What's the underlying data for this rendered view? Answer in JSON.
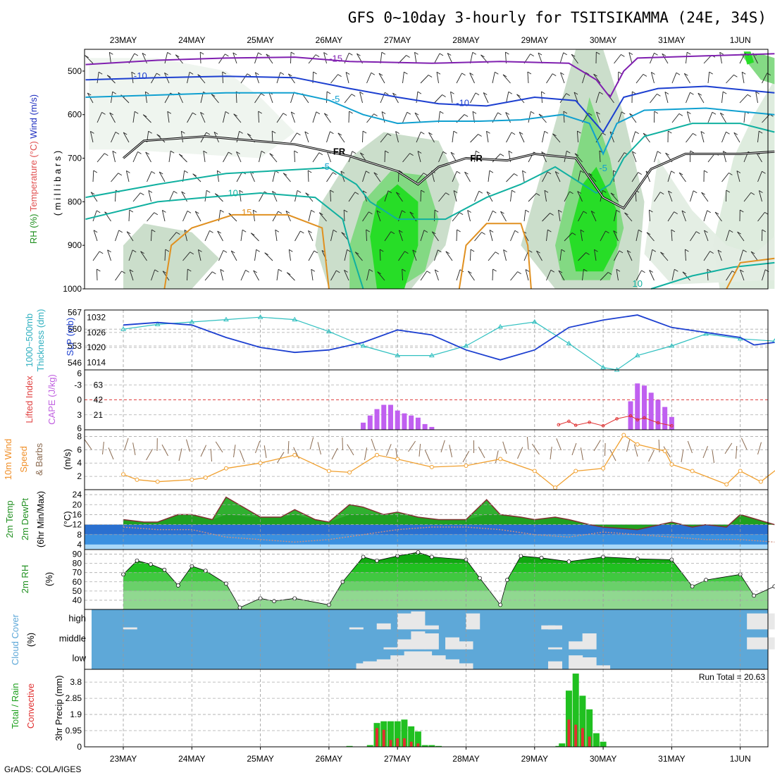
{
  "title": "GFS 0~10day 3-hourly for TSITSIKAMMA (24E, 34S)",
  "footer": "GrADS: COLA/IGES",
  "run_total": "Run Total = 20.63",
  "dates": [
    "23MAY",
    "24MAY",
    "25MAY",
    "26MAY",
    "27MAY",
    "28MAY",
    "29MAY",
    "30MAY",
    "31MAY",
    "1JUN"
  ],
  "colors": {
    "purple": "#8020b0",
    "blue": "#1c3fd0",
    "lightblue": "#10a0d0",
    "teal": "#10b0a0",
    "orange": "#e09020",
    "green": "#00e000",
    "darkgreen": "#209020",
    "cloud_bg": "#5ea8d8",
    "cloud_fill": "#e8e8e8"
  },
  "chart_data": [
    {
      "type": "area",
      "panel": "upper-air",
      "ylabel_parts": [
        "RH (%)",
        "Temperature (°C)",
        "Wind (m/s)"
      ],
      "ylabel_mb": "( m i l l i b a r s )",
      "yticks": [
        "500",
        "600",
        "700",
        "800",
        "900",
        "1000"
      ],
      "ylim": [
        1000,
        450
      ],
      "contour_labels": [
        {
          "text": "-15",
          "x": 3.1,
          "p": 478
        },
        {
          "text": "-10",
          "x": 0.25,
          "p": 518
        },
        {
          "text": "-5",
          "x": 3.1,
          "p": 571
        },
        {
          "text": "-10",
          "x": 4.95,
          "p": 580
        },
        {
          "text": "FR",
          "x": 3.15,
          "p": 692
        },
        {
          "text": "FR",
          "x": 5.15,
          "p": 707
        },
        {
          "text": "-5",
          "x": 2.95,
          "p": 727
        },
        {
          "text": "-5",
          "x": 7.0,
          "p": 730
        },
        {
          "text": "10",
          "x": 1.6,
          "p": 787
        },
        {
          "text": "15",
          "x": 1.8,
          "p": 832
        },
        {
          "text": "10",
          "x": 7.5,
          "p": 995
        }
      ],
      "freezing_level_mb": [
        {
          "x": 0,
          "p": 700
        },
        {
          "x": 0.3,
          "p": 660
        },
        {
          "x": 1.2,
          "p": 650
        },
        {
          "x": 2.5,
          "p": 668
        },
        {
          "x": 3.3,
          "p": 695
        },
        {
          "x": 4.0,
          "p": 730
        },
        {
          "x": 4.3,
          "p": 760
        },
        {
          "x": 4.6,
          "p": 720
        },
        {
          "x": 5.0,
          "p": 700
        },
        {
          "x": 5.6,
          "p": 705
        },
        {
          "x": 6.0,
          "p": 690
        },
        {
          "x": 6.6,
          "p": 700
        },
        {
          "x": 7.0,
          "p": 790
        },
        {
          "x": 7.3,
          "p": 815
        },
        {
          "x": 7.7,
          "p": 725
        },
        {
          "x": 8.2,
          "p": 690
        },
        {
          "x": 9.0,
          "p": 690
        },
        {
          "x": 9.5,
          "p": 685
        }
      ]
    },
    {
      "type": "line",
      "panel": "thickness-slp",
      "ylabel_left": "1000~500mb Thickness (dm)",
      "ylabel_right": "SLP (mb)",
      "yticks_left": [
        "567",
        "560",
        "553",
        "546"
      ],
      "yticks_right": [
        "1032",
        "1026",
        "1020",
        "1014"
      ],
      "series": [
        {
          "name": "Thickness",
          "x": [
            0,
            0.5,
            1,
            1.5,
            2,
            2.5,
            3,
            3.5,
            4,
            4.5,
            5,
            5.5,
            6,
            6.5,
            7,
            7.2,
            7.5,
            8,
            8.5,
            9,
            9.5
          ],
          "values": [
            560,
            562,
            563,
            564,
            565,
            564,
            559,
            553,
            549,
            549,
            553,
            561,
            563,
            554,
            544,
            543,
            549,
            553,
            558,
            556,
            555
          ]
        },
        {
          "name": "SLP",
          "x": [
            0,
            0.5,
            1,
            1.5,
            2,
            2.5,
            3,
            3.5,
            4,
            4.5,
            5,
            5.5,
            6,
            6.5,
            7,
            7.5,
            8,
            8.5,
            9,
            9.2,
            9.5
          ],
          "values": [
            1029,
            1030,
            1029,
            1024,
            1020,
            1018,
            1019,
            1022,
            1027,
            1025,
            1019,
            1015,
            1019,
            1028,
            1031,
            1033,
            1028,
            1026,
            1024,
            1021,
            1022
          ]
        }
      ]
    },
    {
      "type": "bar",
      "panel": "cape-li",
      "ylabel_left": "Lifted Index",
      "ylabel_right": "CAPE (J/kg)",
      "yticks_left": [
        "-3",
        "0",
        "3"
      ],
      "yticks_right": [
        "63",
        "42",
        "21"
      ],
      "yticks_left_edges": [
        "6",
        "6"
      ],
      "cape": {
        "x": [
          3.5,
          3.6,
          3.7,
          3.8,
          3.9,
          4.0,
          4.1,
          4.2,
          4.3,
          4.4,
          4.5,
          7.4,
          7.5,
          7.6,
          7.7,
          7.8,
          7.9,
          8.0
        ],
        "values": [
          10,
          20,
          29,
          35,
          35,
          27,
          23,
          20,
          17,
          8,
          4,
          40,
          65,
          62,
          52,
          42,
          32,
          18
        ]
      },
      "li": {
        "x": [
          6.35,
          6.5,
          6.6,
          6.8,
          7.0,
          7.2,
          7.4,
          7.5,
          7.6,
          7.8,
          8.0
        ],
        "values": [
          5.0,
          4.3,
          5.1,
          4.5,
          5.2,
          3.8,
          3.2,
          4.0,
          3.6,
          4.6,
          5.2
        ]
      }
    },
    {
      "type": "line",
      "panel": "wind10m",
      "ylabel_parts": [
        "10m Wind",
        "Speed",
        "& Barbs"
      ],
      "yunit": "(m/s)",
      "yticks": [
        "8",
        "6",
        "4",
        "2"
      ],
      "series": [
        {
          "name": "10m Wind Speed",
          "x": [
            0,
            0.2,
            0.5,
            1,
            1.2,
            1.5,
            2,
            2.5,
            3,
            3.3,
            3.7,
            4,
            4.5,
            5,
            5.5,
            6,
            6.3,
            6.6,
            7,
            7.3,
            7.5,
            7.9,
            8,
            8.3,
            8.8,
            9,
            9.3,
            9.6
          ],
          "values": [
            2.3,
            1.5,
            1.2,
            1.5,
            1.8,
            3.2,
            4.0,
            5.2,
            2.8,
            2.6,
            5.2,
            4.6,
            3.4,
            3.6,
            4.6,
            2.8,
            0.3,
            2.8,
            3.2,
            8.2,
            6.8,
            5.8,
            3.8,
            2.8,
            0.8,
            2.8,
            1.2,
            3.6
          ]
        }
      ]
    },
    {
      "type": "area",
      "panel": "temp-dewpt",
      "ylabel_parts": [
        "2m Temp",
        "2m DewPt",
        "(6hr Min/Max)"
      ],
      "yunit": "(°C)",
      "yticks": [
        "24",
        "20",
        "16",
        "12",
        "8",
        "4"
      ],
      "series": [
        {
          "name": "2m Temp",
          "x": [
            0,
            0.3,
            0.5,
            0.8,
            1,
            1.3,
            1.5,
            2,
            2.3,
            2.5,
            2.8,
            3,
            3.3,
            3.5,
            3.8,
            4,
            4.3,
            4.6,
            5,
            5.3,
            5.5,
            5.8,
            6,
            6.3,
            6.5,
            6.8,
            7,
            7.5,
            8,
            8.3,
            8.5,
            8.8,
            9,
            9.5
          ],
          "values": [
            14,
            13,
            13,
            16,
            16,
            14,
            23,
            15,
            15,
            18,
            14,
            13,
            20,
            19,
            16,
            17,
            15,
            14,
            14,
            22,
            16,
            15,
            14,
            15,
            14,
            12,
            11,
            10,
            13,
            11,
            12,
            11,
            16,
            12
          ]
        },
        {
          "name": "2m DewPt",
          "x": [
            0,
            0.5,
            1,
            1.5,
            2,
            2.5,
            3,
            3.5,
            4,
            4.5,
            5,
            5.5,
            6,
            6.5,
            7,
            7.5,
            8,
            8.5,
            9,
            9.5
          ],
          "values": [
            11,
            10,
            10,
            7,
            6,
            5,
            6,
            8,
            10,
            11,
            11,
            10,
            8,
            7,
            9,
            8,
            7,
            6,
            6,
            5
          ]
        }
      ]
    },
    {
      "type": "area",
      "panel": "rh2m",
      "ylabel": "2m RH",
      "yunit": "(%)",
      "yticks": [
        "90",
        "80",
        "70",
        "60",
        "50",
        "40"
      ],
      "series": [
        {
          "name": "2m RH",
          "x": [
            0,
            0.2,
            0.4,
            0.6,
            0.8,
            1,
            1.2,
            1.5,
            1.7,
            2,
            2.2,
            2.5,
            3,
            3.2,
            3.5,
            3.7,
            4,
            4.3,
            4.5,
            5,
            5.2,
            5.5,
            5.6,
            5.8,
            6.1,
            6.5,
            7,
            7.5,
            8,
            8.3,
            8.5,
            9,
            9.2,
            9.5
          ],
          "values": [
            68,
            83,
            79,
            73,
            56,
            77,
            72,
            58,
            32,
            42,
            39,
            42,
            35,
            60,
            87,
            83,
            88,
            92,
            87,
            84,
            64,
            35,
            62,
            88,
            86,
            82,
            87,
            85,
            84,
            55,
            62,
            68,
            45,
            55
          ]
        }
      ]
    },
    {
      "type": "heatmap",
      "panel": "cloud",
      "ylabel": "Cloud Cover",
      "yunit": "(%)",
      "row_labels": [
        "high",
        "middle",
        "low"
      ],
      "high": {
        "x": [
          0.1,
          3.4,
          3.8,
          4.1,
          4.3,
          4.5,
          5.1,
          6.2,
          6.3,
          9.2,
          9.4
        ],
        "values": [
          10,
          10,
          30,
          80,
          90,
          20,
          80,
          20,
          20,
          80,
          80
        ]
      },
      "middle": {
        "x": [
          3.9,
          4.1,
          4.3,
          4.5,
          4.8,
          5.0,
          6.3,
          6.6,
          6.8,
          9.2,
          9.4
        ],
        "values": [
          10,
          50,
          90,
          80,
          60,
          40,
          10,
          40,
          80,
          60,
          60
        ]
      },
      "low": {
        "x": [
          3.5,
          3.6,
          3.8,
          4.0,
          4.2,
          4.4,
          4.6,
          4.8,
          5.0,
          6.3,
          6.6,
          6.8,
          7.0
        ],
        "values": [
          30,
          40,
          50,
          70,
          90,
          90,
          70,
          50,
          30,
          40,
          70,
          60,
          20
        ]
      }
    },
    {
      "type": "bar",
      "panel": "precip",
      "ylabel_left": "Total / Rain",
      "ylabel_left2": "Convective",
      "ylabel": "3hr Precip (mm)",
      "yticks": [
        "3.8",
        "2.85",
        "1.9",
        "0.95",
        "0"
      ],
      "total": {
        "x": [
          3.3,
          3.6,
          3.7,
          3.8,
          3.9,
          4.0,
          4.1,
          4.2,
          4.3,
          4.4,
          4.5,
          4.6,
          6.35,
          6.4,
          6.5,
          6.6,
          6.7,
          6.8,
          6.9,
          7.0
        ],
        "values": [
          0.05,
          0.1,
          1.4,
          1.5,
          1.5,
          1.5,
          1.6,
          1.2,
          0.9,
          0.1,
          0.1,
          0.05,
          0.05,
          0.2,
          3.3,
          4.3,
          3.0,
          2.2,
          0.8,
          0.3
        ]
      },
      "convective": {
        "x": [
          3.7,
          3.8,
          3.9,
          4.0,
          4.1,
          4.2,
          4.3,
          6.5,
          6.6,
          6.7,
          6.8
        ],
        "values": [
          1.1,
          1.0,
          0.4,
          0.5,
          0.5,
          0.3,
          0.2,
          1.6,
          1.3,
          1.1,
          0.6
        ]
      }
    }
  ]
}
